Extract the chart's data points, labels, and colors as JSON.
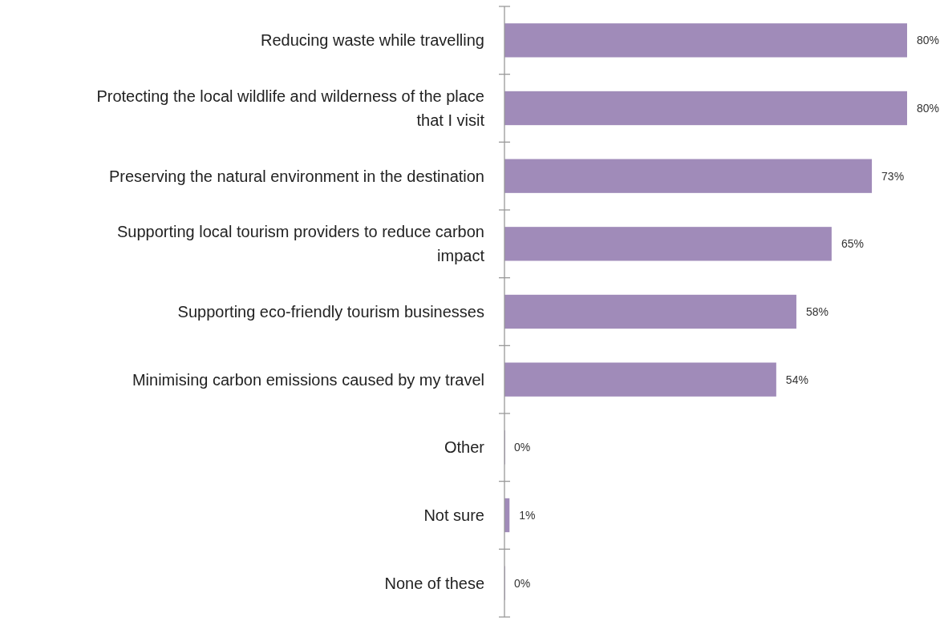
{
  "chart_data": {
    "type": "bar",
    "orientation": "horizontal",
    "categories": [
      "Reducing waste while travelling",
      "Protecting the local wildlife and wilderness of the place that I visit",
      "Preserving the natural environment in the destination",
      "Supporting local tourism providers to reduce carbon impact",
      "Supporting eco-friendly tourism businesses",
      "Minimising carbon emissions caused by my travel",
      "Other",
      "Not sure",
      "None of these"
    ],
    "values": [
      80,
      80,
      73,
      65,
      58,
      54,
      0,
      1,
      0
    ],
    "value_labels": [
      "80%",
      "80%",
      "73%",
      "65%",
      "58%",
      "54%",
      "0%",
      "1%",
      "0%"
    ],
    "color": "#a08bb9",
    "tick_labels": "y"
  }
}
